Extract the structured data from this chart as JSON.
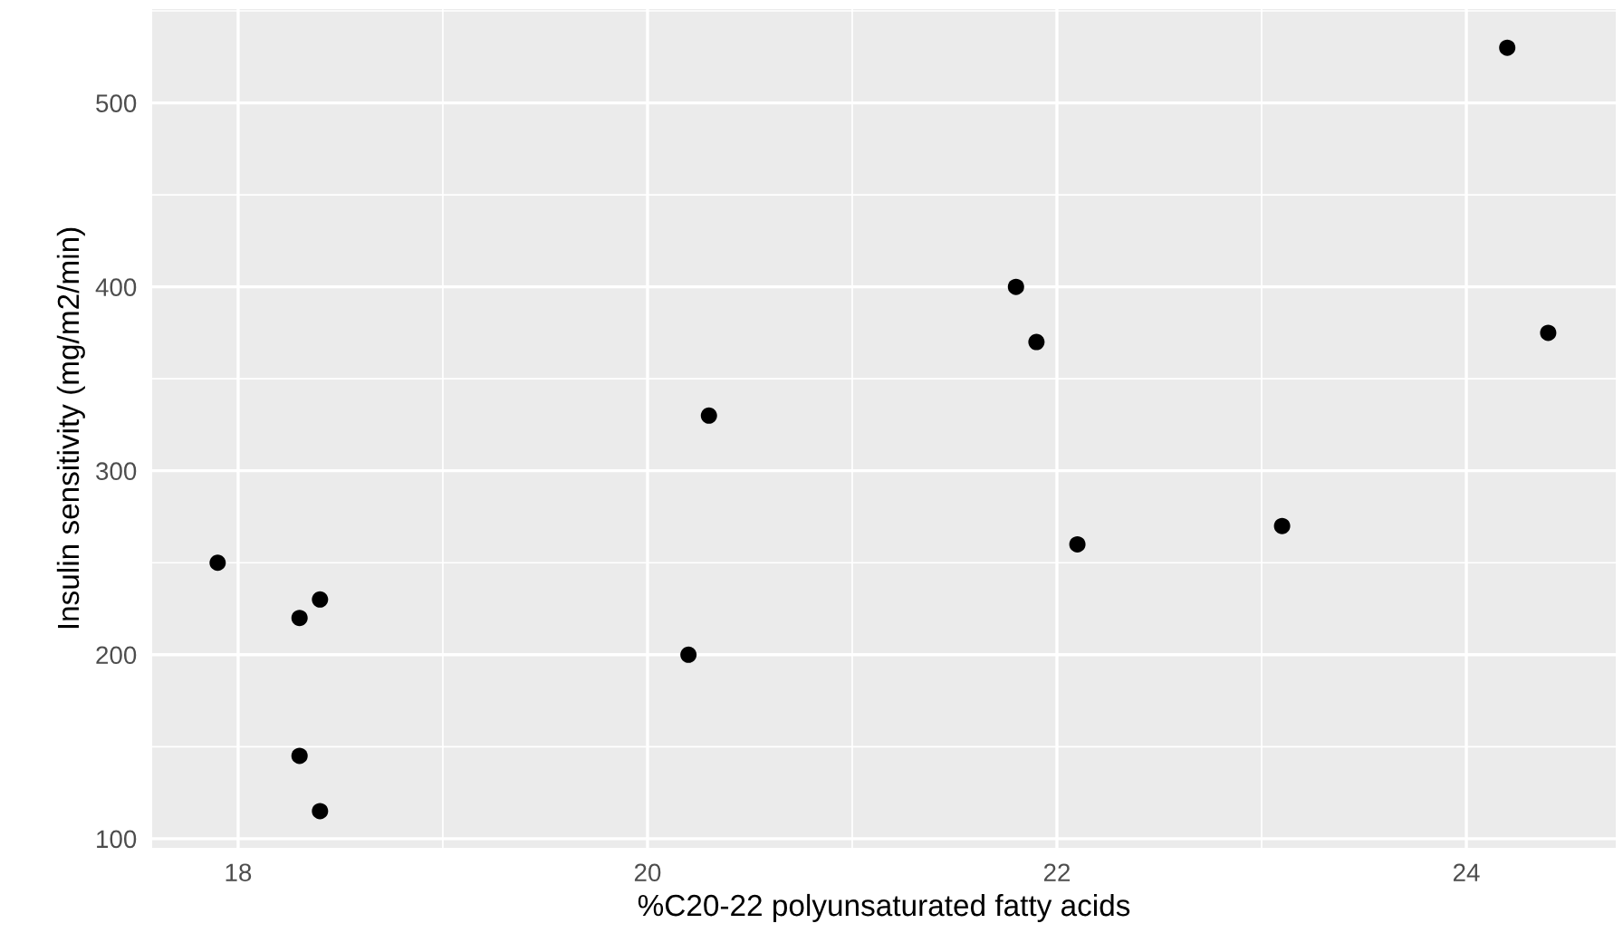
{
  "chart_data": {
    "type": "scatter",
    "xlabel": "%C20-22 polyunsaturated fatty acids",
    "ylabel": "Insulin sensitivity (mg/m2/min)",
    "x": [
      17.9,
      18.3,
      18.4,
      18.3,
      18.4,
      20.2,
      20.3,
      21.8,
      21.9,
      22.1,
      23.1,
      24.2,
      24.4
    ],
    "values": [
      250,
      220,
      230,
      145,
      115,
      200,
      330,
      400,
      370,
      260,
      270,
      530,
      375
    ],
    "color": "#000000",
    "marker": "circle",
    "xlim": [
      17.58,
      24.73
    ],
    "xticks": [
      18,
      20,
      22,
      24
    ],
    "ylim": [
      95,
      551
    ],
    "yticks": [
      100,
      200,
      300,
      400,
      500
    ],
    "grid": true
  }
}
